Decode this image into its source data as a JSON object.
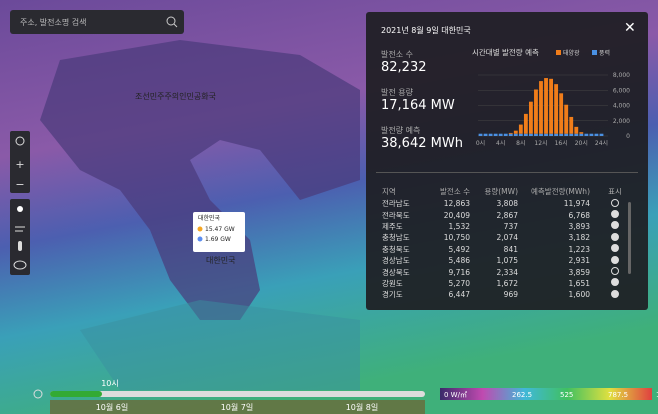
{
  "search": {
    "placeholder": "주소, 발전소명 검색"
  },
  "map": {
    "labels": [
      "조선민주주의인민공화국",
      "대한민국"
    ],
    "tooltip": {
      "title": "대한민국",
      "items": [
        {
          "label": "15.47 GW",
          "color": "#f5a623"
        },
        {
          "label": "1.69 GW",
          "color": "#5b8def"
        }
      ]
    }
  },
  "panel": {
    "title": "2021년 8월 9일 대한민국",
    "stats": [
      {
        "label": "발전소 수",
        "value": "82,232"
      },
      {
        "label": "발전 용량",
        "value": "17,164 MW"
      },
      {
        "label": "발전량 예측",
        "value": "38,642 MWh"
      }
    ],
    "chart_data": {
      "type": "stacked_bar",
      "title": "시간대별 발전량 예측",
      "categories": [
        "0시",
        null,
        null,
        null,
        "4시",
        null,
        null,
        null,
        "8시",
        null,
        null,
        null,
        "12시",
        null,
        null,
        null,
        "16시",
        null,
        null,
        null,
        "20시",
        null,
        null,
        null,
        "24시"
      ],
      "series": [
        {
          "name": "태양광",
          "color": "#f07d1a",
          "values": [
            0,
            0,
            0,
            0,
            0,
            0,
            100,
            400,
            1200,
            2600,
            4200,
            5800,
            6900,
            7300,
            7200,
            6500,
            5300,
            3800,
            2200,
            900,
            200,
            0,
            0,
            0,
            0
          ]
        },
        {
          "name": "풍력",
          "color": "#4a90e2",
          "values": [
            300,
            300,
            300,
            300,
            300,
            300,
            300,
            300,
            300,
            300,
            300,
            300,
            300,
            300,
            300,
            300,
            300,
            300,
            300,
            300,
            300,
            300,
            300,
            300,
            300
          ]
        }
      ],
      "ylim": [
        0,
        8000
      ],
      "yticks": [
        0,
        {
          "value": 2000,
          "label": "2,000"
        },
        {
          "value": 4000,
          "label": "4,000"
        },
        {
          "value": 6000,
          "label": "6,000"
        },
        {
          "value": 8000,
          "label": "8,000"
        }
      ]
    },
    "table": {
      "headers": [
        "지역",
        "발전소 수",
        "용량(MW)",
        "예측발전량(MWh)",
        "표시"
      ],
      "rows": [
        {
          "region": "전라남도",
          "plants": "12,863",
          "capacity": "3,808",
          "forecast": "11,974",
          "shown": false
        },
        {
          "region": "전라북도",
          "plants": "20,409",
          "capacity": "2,867",
          "forecast": "6,768",
          "shown": true
        },
        {
          "region": "제주도",
          "plants": "1,532",
          "capacity": "737",
          "forecast": "3,893",
          "shown": true
        },
        {
          "region": "충청남도",
          "plants": "10,750",
          "capacity": "2,074",
          "forecast": "3,182",
          "shown": true
        },
        {
          "region": "충청북도",
          "plants": "5,492",
          "capacity": "841",
          "forecast": "1,223",
          "shown": true
        },
        {
          "region": "경상남도",
          "plants": "5,486",
          "capacity": "1,075",
          "forecast": "2,931",
          "shown": true
        },
        {
          "region": "경상북도",
          "plants": "9,716",
          "capacity": "2,334",
          "forecast": "3,859",
          "shown": false
        },
        {
          "region": "강원도",
          "plants": "5,270",
          "capacity": "1,672",
          "forecast": "1,651",
          "shown": true
        },
        {
          "region": "경기도",
          "plants": "6,447",
          "capacity": "969",
          "forecast": "1,600",
          "shown": true
        }
      ]
    }
  },
  "timeline": {
    "current": "10시",
    "dates": [
      "10월 6일",
      "10월 7일",
      "10월 8일"
    ]
  },
  "scale": {
    "labels": [
      "0 W/㎡",
      "262.5",
      "525",
      "787.5",
      "1050"
    ]
  }
}
